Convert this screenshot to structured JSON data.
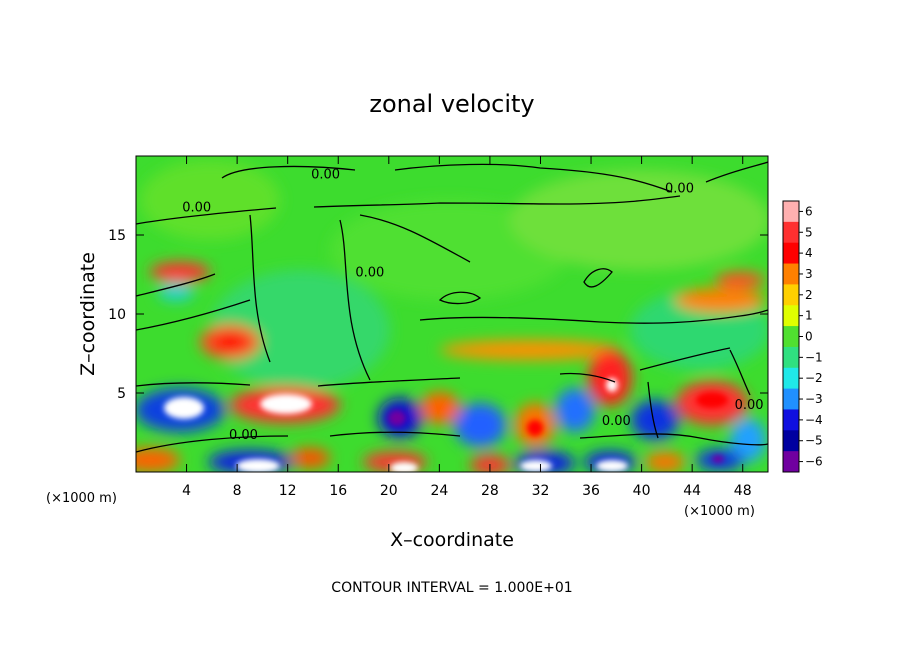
{
  "chart_data": {
    "type": "heatmap",
    "title": "zonal velocity",
    "xlabel": "X–coordinate",
    "ylabel": "Z–coordinate",
    "x_units_left": "(×1000 m)",
    "x_units_right": "(×1000 m)",
    "xlim": [
      0,
      50
    ],
    "ylim": [
      0,
      20
    ],
    "x_ticks": [
      4,
      8,
      12,
      16,
      20,
      24,
      28,
      32,
      36,
      40,
      44,
      48
    ],
    "y_ticks": [
      5,
      10,
      15
    ],
    "colorbar": {
      "ticks": [
        "6",
        "5",
        "4",
        "3",
        "2",
        "1",
        "0",
        "−1",
        "−2",
        "−3",
        "−4",
        "−5",
        "−6"
      ],
      "colors": [
        "#ffb0b0",
        "#ff3030",
        "#ff0000",
        "#ff8000",
        "#ffd000",
        "#e0ff00",
        "#50e030",
        "#30e080",
        "#20e8e8",
        "#2090ff",
        "#1010e0",
        "#0000a0",
        "#7000a0"
      ]
    },
    "contour_labels": [
      {
        "text": "0.00",
        "x": 15,
        "y": 18.9
      },
      {
        "text": "0.00",
        "x": 4.8,
        "y": 16.8
      },
      {
        "text": "0.00",
        "x": 18.5,
        "y": 12.7
      },
      {
        "text": "0.00",
        "x": 43,
        "y": 18.0
      },
      {
        "text": "0.00",
        "x": 8.5,
        "y": 2.4
      },
      {
        "text": "0.00",
        "x": 38,
        "y": 3.3
      },
      {
        "text": "0.00",
        "x": 48.5,
        "y": 4.3
      }
    ],
    "footer": "CONTOUR INTERVAL = 1.000E+01"
  }
}
